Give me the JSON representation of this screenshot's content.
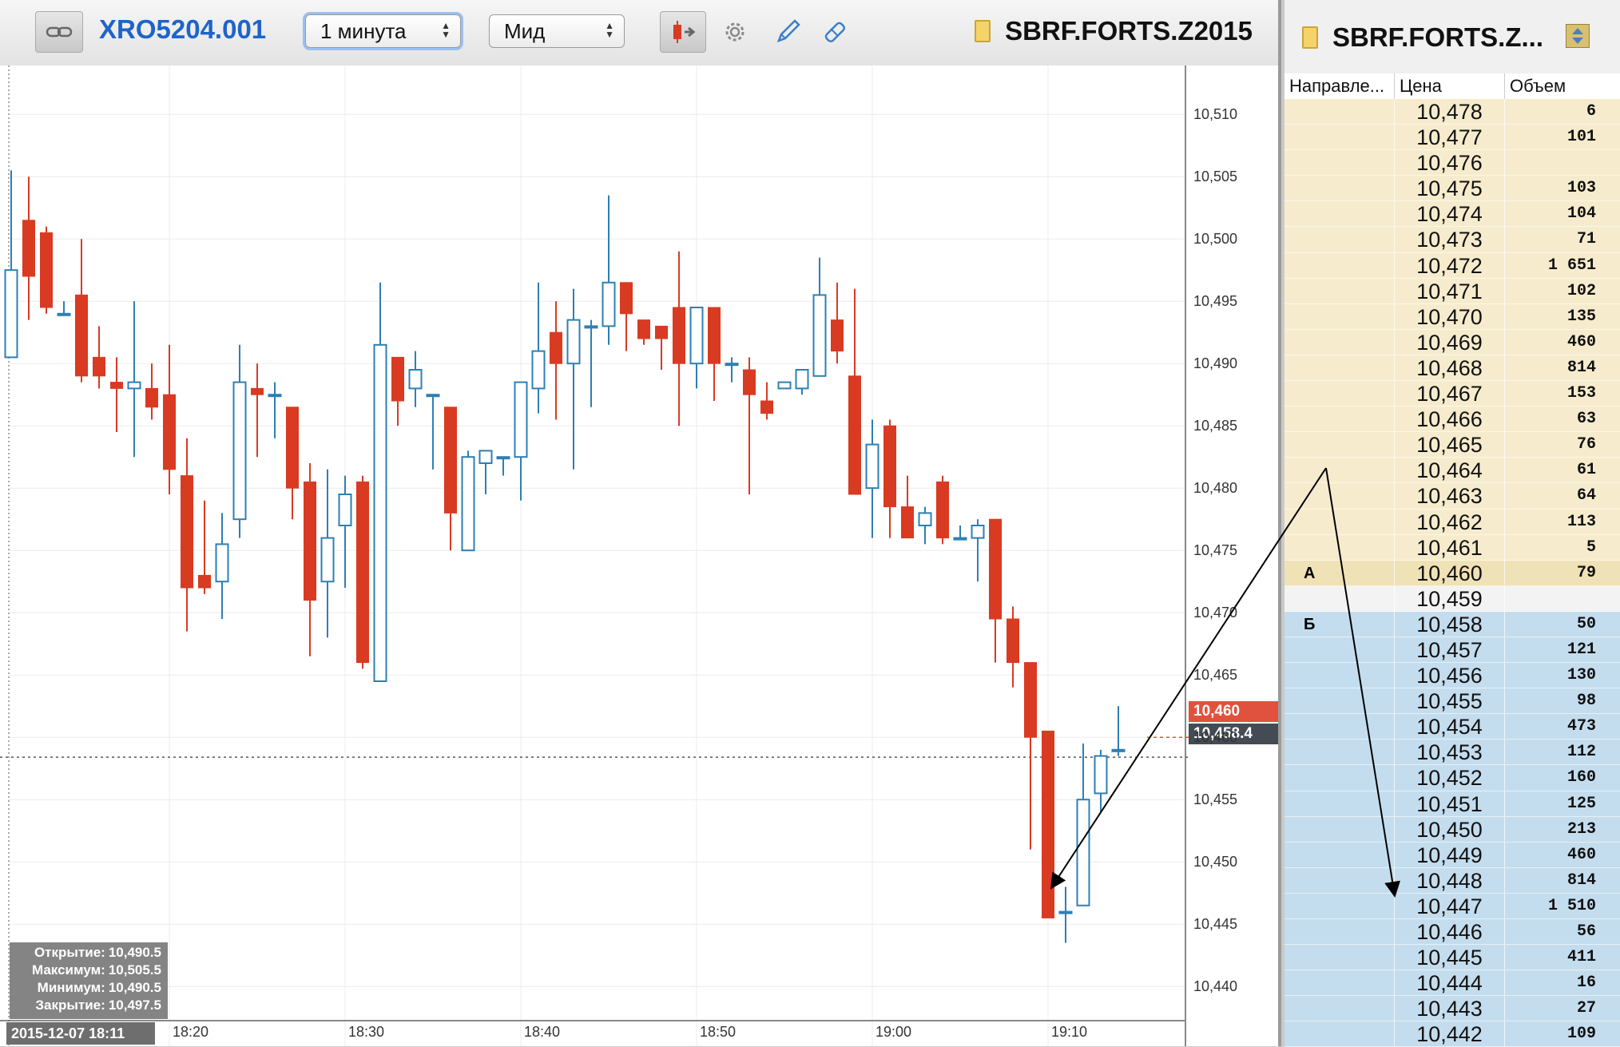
{
  "toolbar": {
    "symbol_link": "XRO5204.001",
    "interval": "1 минута",
    "price_type": "Мид",
    "symbol": "SBRF.FORTS.Z2015"
  },
  "colors": {
    "down": "#d93a22",
    "up": "#2d7fb4",
    "ask_bg": "#f6eccd",
    "bid_bg": "#c4ddee",
    "symbol_blue": "#1f63c9"
  },
  "chart": {
    "ohlc": {
      "open_label": "Открытие:",
      "open": "10,490.5",
      "high_label": "Максимум:",
      "high": "10,505.5",
      "low_label": "Минимум:",
      "low": "10,490.5",
      "close_label": "Закрытие:",
      "close": "10,497.5"
    },
    "start_datetime": "2015-12-07 18:11",
    "last_price": "10,460",
    "mid_price": "10,458.4"
  },
  "chart_data": {
    "type": "candlestick",
    "x_labels": [
      "18:20",
      "18:30",
      "18:40",
      "18:50",
      "19:00",
      "19:10"
    ],
    "y_ticks": [
      "10,510",
      "10,505",
      "10,500",
      "10,495",
      "10,490",
      "10,485",
      "10,480",
      "10,475",
      "10,470",
      "10,465",
      "10,460",
      "10,455",
      "10,450",
      "10,445",
      "10,440"
    ],
    "ylim": [
      10437,
      10512
    ],
    "candles": [
      {
        "o": 10490.5,
        "h": 10505.5,
        "l": 10490.5,
        "c": 10497.5
      },
      {
        "o": 10501.5,
        "h": 10505.0,
        "l": 10493.5,
        "c": 10497.0
      },
      {
        "o": 10500.5,
        "h": 10501.0,
        "l": 10494.0,
        "c": 10494.5
      },
      {
        "o": 10494.0,
        "h": 10495.0,
        "l": 10494.0,
        "c": 10494.0
      },
      {
        "o": 10495.5,
        "h": 10500.0,
        "l": 10488.5,
        "c": 10489.0
      },
      {
        "o": 10490.5,
        "h": 10493.0,
        "l": 10488.0,
        "c": 10489.0
      },
      {
        "o": 10488.5,
        "h": 10490.5,
        "l": 10484.5,
        "c": 10488.0
      },
      {
        "o": 10488.0,
        "h": 10495.0,
        "l": 10482.5,
        "c": 10488.5
      },
      {
        "o": 10488.0,
        "h": 10490.0,
        "l": 10485.5,
        "c": 10486.5
      },
      {
        "o": 10487.5,
        "h": 10491.5,
        "l": 10479.5,
        "c": 10481.5
      },
      {
        "o": 10481.0,
        "h": 10484.0,
        "l": 10468.5,
        "c": 10472.0
      },
      {
        "o": 10473.0,
        "h": 10479.0,
        "l": 10471.5,
        "c": 10472.0
      },
      {
        "o": 10472.5,
        "h": 10478.0,
        "l": 10469.5,
        "c": 10475.5
      },
      {
        "o": 10477.5,
        "h": 10491.5,
        "l": 10476.0,
        "c": 10488.5
      },
      {
        "o": 10488.0,
        "h": 10490.0,
        "l": 10482.5,
        "c": 10487.5
      },
      {
        "o": 10487.5,
        "h": 10488.5,
        "l": 10484.0,
        "c": 10487.5
      },
      {
        "o": 10486.5,
        "h": 10486.5,
        "l": 10477.5,
        "c": 10480.0
      },
      {
        "o": 10480.5,
        "h": 10482.0,
        "l": 10466.5,
        "c": 10471.0
      },
      {
        "o": 10472.5,
        "h": 10481.5,
        "l": 10468.0,
        "c": 10476.0
      },
      {
        "o": 10477.0,
        "h": 10481.0,
        "l": 10472.0,
        "c": 10479.5
      },
      {
        "o": 10480.5,
        "h": 10481.0,
        "l": 10465.5,
        "c": 10466.0
      },
      {
        "o": 10464.5,
        "h": 10496.5,
        "l": 10464.5,
        "c": 10491.5
      },
      {
        "o": 10490.5,
        "h": 10490.5,
        "l": 10485.0,
        "c": 10487.0
      },
      {
        "o": 10488.0,
        "h": 10491.0,
        "l": 10486.5,
        "c": 10489.5
      },
      {
        "o": 10487.5,
        "h": 10487.5,
        "l": 10481.5,
        "c": 10487.5
      },
      {
        "o": 10486.5,
        "h": 10486.5,
        "l": 10475.0,
        "c": 10478.0
      },
      {
        "o": 10475.0,
        "h": 10483.0,
        "l": 10475.0,
        "c": 10482.5
      },
      {
        "o": 10482.0,
        "h": 10483.0,
        "l": 10479.5,
        "c": 10483.0
      },
      {
        "o": 10482.5,
        "h": 10482.5,
        "l": 10481.0,
        "c": 10482.5
      },
      {
        "o": 10482.5,
        "h": 10488.5,
        "l": 10479.0,
        "c": 10488.5
      },
      {
        "o": 10488.0,
        "h": 10496.5,
        "l": 10486.0,
        "c": 10491.0
      },
      {
        "o": 10492.5,
        "h": 10495.0,
        "l": 10485.5,
        "c": 10490.0
      },
      {
        "o": 10490.0,
        "h": 10496.0,
        "l": 10481.5,
        "c": 10493.5
      },
      {
        "o": 10493.0,
        "h": 10493.5,
        "l": 10486.5,
        "c": 10493.0
      },
      {
        "o": 10493.0,
        "h": 10503.5,
        "l": 10491.5,
        "c": 10496.5
      },
      {
        "o": 10496.5,
        "h": 10496.5,
        "l": 10491.0,
        "c": 10494.0
      },
      {
        "o": 10493.5,
        "h": 10493.5,
        "l": 10491.5,
        "c": 10492.0
      },
      {
        "o": 10493.0,
        "h": 10493.0,
        "l": 10489.5,
        "c": 10492.0
      },
      {
        "o": 10494.5,
        "h": 10499.0,
        "l": 10485.0,
        "c": 10490.0
      },
      {
        "o": 10490.0,
        "h": 10494.5,
        "l": 10488.0,
        "c": 10494.5
      },
      {
        "o": 10494.5,
        "h": 10494.5,
        "l": 10487.0,
        "c": 10490.0
      },
      {
        "o": 10490.0,
        "h": 10490.5,
        "l": 10488.5,
        "c": 10490.0
      },
      {
        "o": 10489.5,
        "h": 10490.5,
        "l": 10479.5,
        "c": 10487.5
      },
      {
        "o": 10487.0,
        "h": 10488.5,
        "l": 10485.5,
        "c": 10486.0
      },
      {
        "o": 10488.0,
        "h": 10488.5,
        "l": 10488.0,
        "c": 10488.5
      },
      {
        "o": 10488.0,
        "h": 10489.5,
        "l": 10487.5,
        "c": 10489.5
      },
      {
        "o": 10489.0,
        "h": 10498.5,
        "l": 10489.0,
        "c": 10495.5
      },
      {
        "o": 10493.5,
        "h": 10496.5,
        "l": 10490.0,
        "c": 10491.0
      },
      {
        "o": 10489.0,
        "h": 10496.0,
        "l": 10480.0,
        "c": 10479.5
      },
      {
        "o": 10480.0,
        "h": 10485.5,
        "l": 10476.0,
        "c": 10483.5
      },
      {
        "o": 10485.0,
        "h": 10485.5,
        "l": 10476.0,
        "c": 10478.5
      },
      {
        "o": 10478.5,
        "h": 10481.0,
        "l": 10476.0,
        "c": 10476.0
      },
      {
        "o": 10477.0,
        "h": 10478.5,
        "l": 10475.5,
        "c": 10478.0
      },
      {
        "o": 10480.5,
        "h": 10481.0,
        "l": 10475.5,
        "c": 10476.0
      },
      {
        "o": 10476.0,
        "h": 10477.0,
        "l": 10476.0,
        "c": 10476.0
      },
      {
        "o": 10476.0,
        "h": 10477.5,
        "l": 10472.5,
        "c": 10477.0
      },
      {
        "o": 10477.5,
        "h": 10477.5,
        "l": 10466.0,
        "c": 10469.5
      },
      {
        "o": 10469.5,
        "h": 10470.5,
        "l": 10464.0,
        "c": 10466.0
      },
      {
        "o": 10466.0,
        "h": 10466.0,
        "l": 10451.0,
        "c": 10460.0
      },
      {
        "o": 10460.5,
        "h": 10460.5,
        "l": 10445.5,
        "c": 10445.5
      },
      {
        "o": 10446.0,
        "h": 10448.0,
        "l": 10443.5,
        "c": 10446.0
      },
      {
        "o": 10446.5,
        "h": 10459.5,
        "l": 10446.5,
        "c": 10455.0
      },
      {
        "o": 10455.5,
        "h": 10459.0,
        "l": 10454.0,
        "c": 10458.5
      },
      {
        "o": 10459.0,
        "h": 10462.5,
        "l": 10458.5,
        "c": 10459.0
      }
    ]
  },
  "orderbook": {
    "symbol": "SBRF.FORTS.Z...",
    "columns": [
      "Направле...",
      "Цена",
      "Объем"
    ],
    "rows": [
      {
        "dir": "",
        "price": "10,478",
        "vol": "6",
        "side": "ask"
      },
      {
        "dir": "",
        "price": "10,477",
        "vol": "101",
        "side": "ask"
      },
      {
        "dir": "",
        "price": "10,476",
        "vol": "",
        "side": "ask"
      },
      {
        "dir": "",
        "price": "10,475",
        "vol": "103",
        "side": "ask"
      },
      {
        "dir": "",
        "price": "10,474",
        "vol": "104",
        "side": "ask"
      },
      {
        "dir": "",
        "price": "10,473",
        "vol": "71",
        "side": "ask"
      },
      {
        "dir": "",
        "price": "10,472",
        "vol": "1 651",
        "side": "ask"
      },
      {
        "dir": "",
        "price": "10,471",
        "vol": "102",
        "side": "ask"
      },
      {
        "dir": "",
        "price": "10,470",
        "vol": "135",
        "side": "ask"
      },
      {
        "dir": "",
        "price": "10,469",
        "vol": "460",
        "side": "ask"
      },
      {
        "dir": "",
        "price": "10,468",
        "vol": "814",
        "side": "ask"
      },
      {
        "dir": "",
        "price": "10,467",
        "vol": "153",
        "side": "ask"
      },
      {
        "dir": "",
        "price": "10,466",
        "vol": "63",
        "side": "ask"
      },
      {
        "dir": "",
        "price": "10,465",
        "vol": "76",
        "side": "ask"
      },
      {
        "dir": "",
        "price": "10,464",
        "vol": "61",
        "side": "ask"
      },
      {
        "dir": "",
        "price": "10,463",
        "vol": "64",
        "side": "ask"
      },
      {
        "dir": "",
        "price": "10,462",
        "vol": "113",
        "side": "ask"
      },
      {
        "dir": "",
        "price": "10,461",
        "vol": "5",
        "side": "ask"
      },
      {
        "dir": "А",
        "price": "10,460",
        "vol": "79",
        "side": "best-ask"
      },
      {
        "dir": "",
        "price": "10,459",
        "vol": "",
        "side": "mid"
      },
      {
        "dir": "Б",
        "price": "10,458",
        "vol": "50",
        "side": "bid"
      },
      {
        "dir": "",
        "price": "10,457",
        "vol": "121",
        "side": "bid"
      },
      {
        "dir": "",
        "price": "10,456",
        "vol": "130",
        "side": "bid"
      },
      {
        "dir": "",
        "price": "10,455",
        "vol": "98",
        "side": "bid"
      },
      {
        "dir": "",
        "price": "10,454",
        "vol": "473",
        "side": "bid"
      },
      {
        "dir": "",
        "price": "10,453",
        "vol": "112",
        "side": "bid"
      },
      {
        "dir": "",
        "price": "10,452",
        "vol": "160",
        "side": "bid"
      },
      {
        "dir": "",
        "price": "10,451",
        "vol": "125",
        "side": "bid"
      },
      {
        "dir": "",
        "price": "10,450",
        "vol": "213",
        "side": "bid"
      },
      {
        "dir": "",
        "price": "10,449",
        "vol": "460",
        "side": "bid"
      },
      {
        "dir": "",
        "price": "10,448",
        "vol": "814",
        "side": "bid"
      },
      {
        "dir": "",
        "price": "10,447",
        "vol": "1 510",
        "side": "bid"
      },
      {
        "dir": "",
        "price": "10,446",
        "vol": "56",
        "side": "bid"
      },
      {
        "dir": "",
        "price": "10,445",
        "vol": "411",
        "side": "bid"
      },
      {
        "dir": "",
        "price": "10,444",
        "vol": "16",
        "side": "bid"
      },
      {
        "dir": "",
        "price": "10,443",
        "vol": "27",
        "side": "bid"
      },
      {
        "dir": "",
        "price": "10,442",
        "vol": "109",
        "side": "bid"
      }
    ]
  }
}
